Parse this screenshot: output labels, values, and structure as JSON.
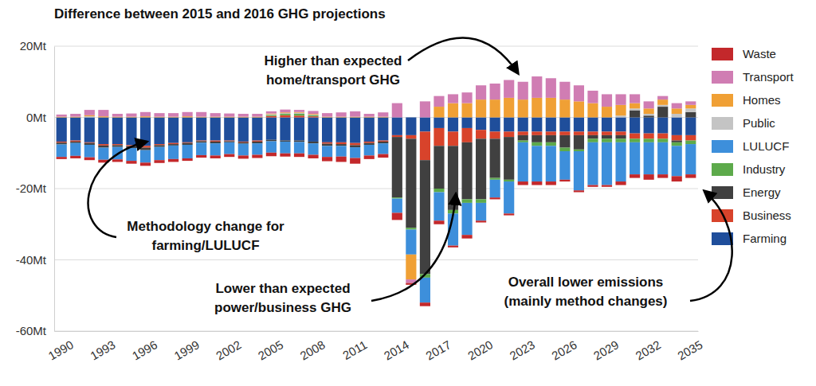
{
  "chart_data": {
    "type": "bar",
    "title": "Difference between 2015 and 2016 GHG projections",
    "stacked": true,
    "grid": true,
    "legend": "right",
    "categories": [
      "1990",
      null,
      null,
      "1993",
      null,
      null,
      "1996",
      null,
      null,
      "1999",
      null,
      null,
      "2002",
      null,
      null,
      "2005",
      null,
      null,
      "2008",
      null,
      null,
      "2011",
      null,
      null,
      "2014",
      null,
      null,
      "2017",
      null,
      null,
      "2020",
      null,
      null,
      "2023",
      null,
      null,
      "2026",
      null,
      null,
      "2029",
      null,
      null,
      "2032",
      null,
      null,
      "2035"
    ],
    "ylim": [
      -60,
      20
    ],
    "yticks": [
      {
        "value": -60,
        "label": "-60Mt"
      },
      {
        "value": -40,
        "label": "-40Mt"
      },
      {
        "value": -20,
        "label": "-20Mt"
      },
      {
        "value": 0,
        "label": "0Mt"
      },
      {
        "value": 20,
        "label": "20Mt"
      }
    ],
    "series": [
      {
        "name": "Waste",
        "color": "#c3282b",
        "values": [
          -0.6,
          -0.7,
          -0.8,
          -0.8,
          -0.7,
          -0.8,
          -0.9,
          -0.8,
          -0.8,
          -0.7,
          -0.7,
          -0.8,
          -0.8,
          -0.9,
          -0.9,
          -1,
          -0.9,
          -1,
          -1,
          -1.2,
          -1.5,
          -1.6,
          -1,
          -1,
          -2,
          -0.5,
          -1,
          -1,
          -0.5,
          -1,
          -0.5,
          -0.5,
          -0.5,
          -1,
          -1,
          -1,
          -0.5,
          -0.5,
          -0.5,
          -0.5,
          -1,
          -1,
          -1.5,
          -1,
          -1.5,
          -1
        ]
      },
      {
        "name": "Transport",
        "color": "#d07db3",
        "values": [
          0.6,
          0.8,
          1.5,
          1.8,
          0.8,
          0.9,
          1.2,
          1.0,
          1.0,
          1.2,
          1.3,
          1.0,
          0.9,
          0.8,
          0.8,
          0.6,
          0.8,
          0.6,
          0.8,
          1.0,
          1.2,
          1.5,
          0.8,
          1.2,
          4,
          -1,
          4.5,
          3,
          2.5,
          3,
          4,
          4.5,
          5,
          5,
          6,
          5.5,
          5,
          4.5,
          3.5,
          3.5,
          3,
          2.5,
          2,
          1,
          1.5,
          1
        ]
      },
      {
        "name": "Homes",
        "color": "#f0a035",
        "values": [
          0.2,
          0.2,
          0.3,
          0.3,
          0.2,
          0.2,
          0.3,
          0.2,
          0.2,
          0.3,
          0.2,
          0.2,
          0.2,
          0.2,
          0.2,
          0.2,
          0.2,
          0.2,
          0.2,
          0.2,
          0.2,
          0.2,
          0.2,
          0.2,
          0,
          -7,
          0,
          3,
          4,
          4,
          5,
          5,
          5.5,
          5,
          5.5,
          5.5,
          5,
          4.5,
          4,
          3,
          3,
          1.5,
          1.5,
          1.5,
          1.5,
          1
        ]
      },
      {
        "name": "Public",
        "color": "#c4c4c4",
        "values": [
          0,
          0,
          0.3,
          0,
          0,
          0,
          0,
          0,
          0,
          0,
          0,
          0,
          0,
          0,
          0,
          0.2,
          0.2,
          0.3,
          0.2,
          0,
          0,
          0,
          0,
          0,
          0,
          0,
          0,
          0,
          0,
          0,
          0,
          0,
          0,
          0,
          0,
          0,
          0,
          0,
          0,
          0,
          0.5,
          0.5,
          0.5,
          0.5,
          1,
          1
        ]
      },
      {
        "name": "LULUCF",
        "color": "#3d8fdb",
        "values": [
          -3.5,
          -3.6,
          -3.5,
          -3.4,
          -3.5,
          -3.6,
          -3.5,
          -3.7,
          -3.8,
          -3.8,
          -3.5,
          -3.4,
          -3.3,
          -3.3,
          -3.2,
          -3.2,
          -3.3,
          -3.2,
          -3.2,
          -3.1,
          -3,
          -3,
          -3,
          -3,
          -4,
          -7,
          -7,
          -8,
          -9,
          -9,
          -5,
          -5,
          -9,
          -11,
          -10,
          -10,
          -8,
          -11,
          -12,
          -12,
          -11,
          -9,
          -9,
          -9,
          -8.5,
          -8.5
        ]
      },
      {
        "name": "Industry",
        "color": "#5daa4b",
        "values": [
          0,
          0,
          0,
          0,
          0,
          0,
          0,
          0,
          0,
          0,
          0,
          0,
          0,
          0,
          0,
          0.3,
          0.4,
          0.5,
          0.3,
          0,
          0,
          0,
          0,
          0,
          -0.3,
          -0.5,
          -1,
          -1,
          -1,
          -1,
          -1,
          -0.5,
          -0.5,
          -0.5,
          -1,
          -1,
          -1,
          -0.5,
          -1,
          -1,
          -1,
          -1,
          -1,
          -1,
          -1,
          -1
        ]
      },
      {
        "name": "Energy",
        "color": "#404040",
        "values": [
          -0.5,
          -0.4,
          -0.5,
          -0.6,
          -0.5,
          -0.5,
          -0.7,
          -0.5,
          -0.4,
          -0.5,
          -0.4,
          -0.5,
          -0.3,
          -0.4,
          -0.5,
          -0.4,
          -0.3,
          -0.4,
          -0.5,
          -0.6,
          -0.5,
          -0.6,
          -0.5,
          -0.5,
          -17,
          -25,
          -32,
          -12,
          -18,
          -16,
          -17,
          -11,
          -12,
          -1.5,
          -2,
          -2,
          -3.5,
          -4,
          -1,
          -1,
          -1,
          2,
          0.5,
          3,
          -0.5,
          1.5
        ]
      },
      {
        "name": "Business",
        "color": "#d8432b",
        "values": [
          -0.3,
          -0.3,
          -0.2,
          -0.4,
          -0.3,
          -0.3,
          -0.5,
          -0.3,
          -0.3,
          -0.2,
          -0.2,
          -0.3,
          -0.2,
          -0.2,
          -0.3,
          0.4,
          0.6,
          0.5,
          0.3,
          -0.4,
          -0.5,
          -0.6,
          -0.4,
          -0.3,
          -0.5,
          -1,
          -8,
          -5,
          -4,
          -4,
          -2.5,
          -2,
          -1.5,
          -1,
          -1,
          -1,
          -1,
          -1,
          -1,
          -1,
          -1,
          -1.5,
          -1.5,
          -1.5,
          -1.5,
          -1.5
        ]
      },
      {
        "name": "Farming",
        "color": "#1f4e9b",
        "values": [
          -6.8,
          -6.5,
          -7,
          -7.5,
          -7.5,
          -7.8,
          -8,
          -7.5,
          -7.2,
          -7,
          -6.5,
          -6.5,
          -6.5,
          -6.8,
          -6.5,
          -6.3,
          -6.5,
          -6.5,
          -6.8,
          -7,
          -7,
          -7.2,
          -6.8,
          -6.5,
          -5,
          -5,
          -4,
          -3,
          -4,
          -3,
          -3.5,
          -4,
          -4,
          -4,
          -4,
          -4,
          -4,
          -4,
          -4,
          -4,
          -4,
          -4.5,
          -4.5,
          -4.5,
          -5,
          -5
        ]
      }
    ],
    "annotations": [
      {
        "lines": [
          "Higher than expected",
          "home/transport GHG"
        ]
      },
      {
        "lines": [
          "Methodology change for",
          "farming/LULUCF"
        ]
      },
      {
        "lines": [
          "Lower than expected",
          "power/business GHG"
        ]
      },
      {
        "lines": [
          "Overall lower emissions",
          "(mainly method changes)"
        ]
      }
    ]
  }
}
